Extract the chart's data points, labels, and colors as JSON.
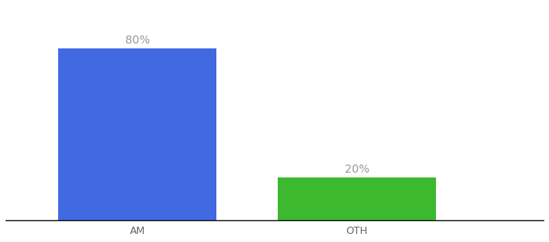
{
  "categories": [
    "AM",
    "OTH"
  ],
  "values": [
    80,
    20
  ],
  "bar_colors": [
    "#4169e1",
    "#3cb92e"
  ],
  "labels": [
    "80%",
    "20%"
  ],
  "ylim": [
    0,
    100
  ],
  "background_color": "#ffffff",
  "label_fontsize": 10,
  "tick_fontsize": 9,
  "x_positions": [
    1,
    2
  ],
  "bar_width": 0.72,
  "xlim": [
    0.4,
    2.85
  ]
}
